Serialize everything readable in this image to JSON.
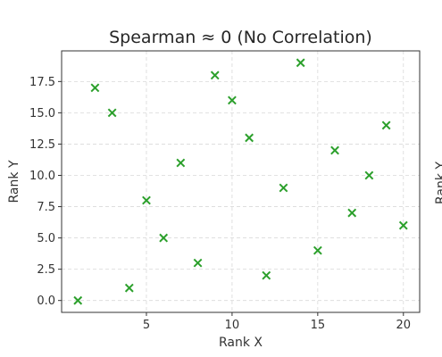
{
  "chart_data": {
    "type": "scatter",
    "title": "Spearman ≈ 0 (No Correlation)",
    "xlabel": "Rank X",
    "ylabel": "Rank Y",
    "xlim": [
      0.05,
      20.95
    ],
    "ylim": [
      -0.95,
      19.95
    ],
    "xticks": [
      5,
      10,
      15,
      20
    ],
    "xtick_labels": [
      "5",
      "10",
      "15",
      "20"
    ],
    "yticks": [
      0,
      2.5,
      5,
      7.5,
      10,
      12.5,
      15,
      17.5
    ],
    "ytick_labels": [
      "0.0",
      "2.5",
      "5.0",
      "7.5",
      "10.0",
      "12.5",
      "15.0",
      "17.5"
    ],
    "grid": true,
    "marker": "x",
    "color": "#2ca02c",
    "points": [
      {
        "x": 1,
        "y": 0
      },
      {
        "x": 2,
        "y": 17
      },
      {
        "x": 3,
        "y": 15
      },
      {
        "x": 4,
        "y": 1
      },
      {
        "x": 5,
        "y": 8
      },
      {
        "x": 6,
        "y": 5
      },
      {
        "x": 7,
        "y": 11
      },
      {
        "x": 8,
        "y": 3
      },
      {
        "x": 9,
        "y": 18
      },
      {
        "x": 10,
        "y": 16
      },
      {
        "x": 11,
        "y": 13
      },
      {
        "x": 12,
        "y": 2
      },
      {
        "x": 13,
        "y": 9
      },
      {
        "x": 14,
        "y": 19
      },
      {
        "x": 15,
        "y": 4
      },
      {
        "x": 16,
        "y": 12
      },
      {
        "x": 17,
        "y": 7
      },
      {
        "x": 18,
        "y": 10
      },
      {
        "x": 19,
        "y": 14
      },
      {
        "x": 20,
        "y": 6
      }
    ]
  },
  "clipped_neighbor_label": "Rank Y"
}
